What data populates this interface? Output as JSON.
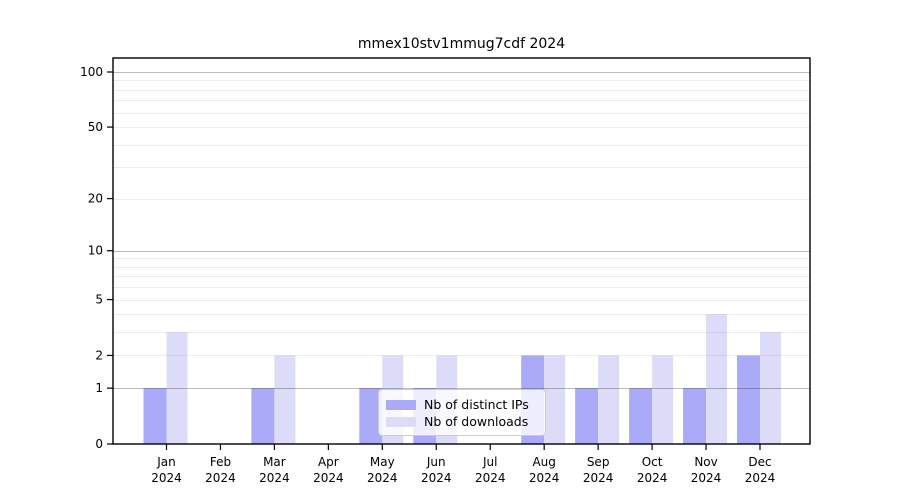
{
  "figure": {
    "title": "mmex10stv1mmug7cdf 2024",
    "background_color": "#ffffff"
  },
  "chart_data": {
    "type": "bar",
    "title": "mmex10stv1mmug7cdf 2024",
    "categories": [
      "Jan 2024",
      "Feb 2024",
      "Mar 2024",
      "Apr 2024",
      "May 2024",
      "Jun 2024",
      "Jul 2024",
      "Aug 2024",
      "Sep 2024",
      "Oct 2024",
      "Nov 2024",
      "Dec 2024"
    ],
    "x_months": [
      "Jan",
      "Feb",
      "Mar",
      "Apr",
      "May",
      "Jun",
      "Jul",
      "Aug",
      "Sep",
      "Oct",
      "Nov",
      "Dec"
    ],
    "x_year": "2024",
    "series": [
      {
        "name": "Nb of distinct IPs",
        "color": "#aaaaf8",
        "values": [
          1,
          0,
          1,
          0,
          1,
          1,
          0,
          2,
          1,
          1,
          1,
          2
        ]
      },
      {
        "name": "Nb of downloads",
        "color": "#dcdcf8",
        "values": [
          3,
          0,
          2,
          0,
          2,
          2,
          0,
          2,
          2,
          2,
          4,
          3
        ]
      }
    ],
    "xlabel": "",
    "ylabel": "",
    "ylim": [
      0,
      100
    ],
    "y_scale": "log(1+x)",
    "y_tick_labels": [
      100,
      50,
      20,
      10,
      5,
      2,
      1,
      0
    ],
    "y_major_gridlines": [
      1,
      10,
      100
    ],
    "y_minor_gridlines": [
      2,
      3,
      4,
      5,
      6,
      7,
      8,
      9,
      20,
      30,
      40,
      50,
      60,
      70,
      80,
      90
    ],
    "grid": true,
    "legend_position": "lower center",
    "axis_color": "#000000",
    "major_grid_color": "rgba(0,0,0,0.26)",
    "minor_grid_color": "rgba(0,0,0,0.07)"
  },
  "legend": {
    "entries": [
      {
        "label": "Nb of distinct IPs"
      },
      {
        "label": "Nb of downloads"
      }
    ]
  }
}
